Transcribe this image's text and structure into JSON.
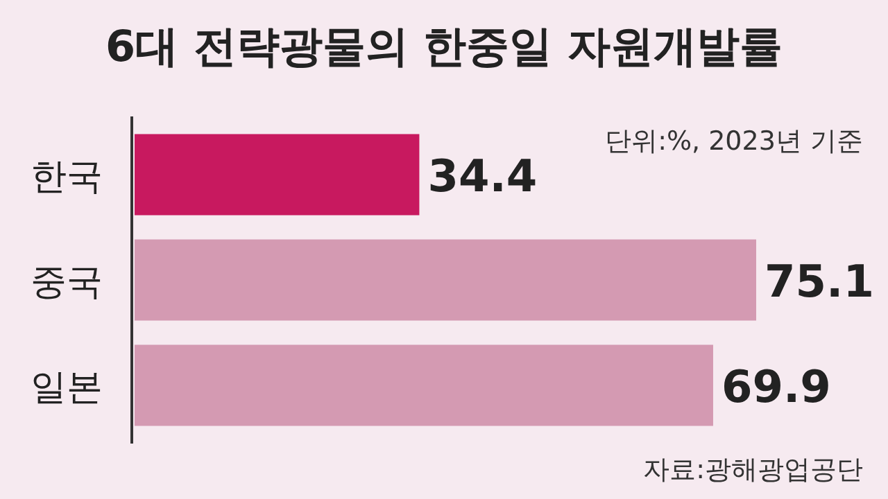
{
  "chart_data": {
    "type": "bar",
    "orientation": "horizontal",
    "title": "6대 전략광물의 한중일 자원개발률",
    "subtitle": "단위:%, 2023년 기준",
    "categories": [
      "한국",
      "중국",
      "일본"
    ],
    "values": [
      34.4,
      75.1,
      69.9
    ],
    "colors": [
      "#c8195f",
      "#d49ab2",
      "#d49ab2"
    ],
    "data_labels": true,
    "annotations": [
      "자료:광해광업공단"
    ]
  }
}
